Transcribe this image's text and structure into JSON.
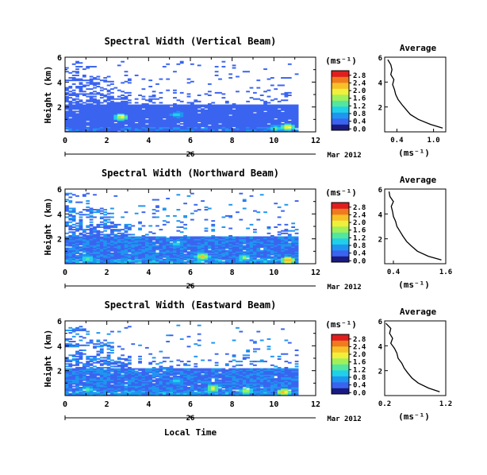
{
  "figure": {
    "time_axis_label": "Local Time",
    "date_day": "26",
    "date_month_year": "Mar 2012",
    "cbar_unit": "(ms⁻¹)",
    "avg_title": "Average",
    "avg_xlabel": "(ms⁻¹)"
  },
  "chart_data": [
    {
      "type": "heatmap",
      "title": "Spectral Width (Vertical Beam)",
      "ylabel": "Height (km)",
      "xlabel": "Local Time",
      "xlim": [
        0,
        12
      ],
      "xticks": [
        "0",
        "2",
        "4",
        "6",
        "8",
        "10",
        "12"
      ],
      "ylim": [
        0,
        6
      ],
      "yticks": [
        "2",
        "4",
        "6"
      ],
      "data_extent_hours": [
        0,
        11.1
      ],
      "max_height_km": 5.7,
      "dense_top_km": 2.2,
      "colorbar": {
        "ticks": [
          "0.0",
          "0.4",
          "0.8",
          "1.2",
          "1.6",
          "2.0",
          "2.4",
          "2.8"
        ],
        "range": [
          0,
          2.8
        ],
        "colors": [
          "#1a1a80",
          "#3a64f0",
          "#1e96f0",
          "#20d0e8",
          "#52e6a0",
          "#a0f05a",
          "#f0f03c",
          "#f8c028",
          "#f07a1e",
          "#e01e1e"
        ]
      },
      "typical_value_ms": 0.3,
      "hotspots": [
        {
          "t": 2.6,
          "h": 1.2,
          "v": 2.0
        },
        {
          "t": 5.3,
          "h": 1.4,
          "v": 1.2
        },
        {
          "t": 10.0,
          "h": 0.3,
          "v": 1.4
        },
        {
          "t": 10.6,
          "h": 0.4,
          "v": 2.2
        }
      ],
      "average_profile": {
        "xlim": [
          0.2,
          1.2
        ],
        "xticks": [
          "0.4",
          "1.0"
        ],
        "ylim": [
          0,
          6
        ],
        "yticks": [
          "2",
          "4",
          "6"
        ],
        "height_km": [
          0.3,
          0.6,
          1.0,
          1.4,
          1.8,
          2.2,
          2.6,
          3.0,
          3.4,
          3.8,
          4.2,
          4.6,
          5.0,
          5.4,
          5.8
        ],
        "width_ms": [
          1.15,
          0.95,
          0.75,
          0.62,
          0.55,
          0.48,
          0.42,
          0.38,
          0.36,
          0.33,
          0.35,
          0.3,
          0.32,
          0.3,
          0.25
        ]
      }
    },
    {
      "type": "heatmap",
      "title": "Spectral Width (Northward Beam)",
      "ylabel": "Height (km)",
      "xlabel": "Local Time",
      "xlim": [
        0,
        12
      ],
      "xticks": [
        "0",
        "2",
        "4",
        "6",
        "8",
        "10",
        "12"
      ],
      "ylim": [
        0,
        6
      ],
      "yticks": [
        "2",
        "4",
        "6"
      ],
      "data_extent_hours": [
        0,
        11.1
      ],
      "max_height_km": 5.7,
      "dense_top_km": 2.2,
      "colorbar": {
        "ticks": [
          "0.0",
          "0.4",
          "0.8",
          "1.2",
          "1.6",
          "2.0",
          "2.4",
          "2.8"
        ],
        "range": [
          0,
          2.8
        ],
        "colors": [
          "#1a1a80",
          "#3a64f0",
          "#1e96f0",
          "#20d0e8",
          "#52e6a0",
          "#a0f05a",
          "#f0f03c",
          "#f8c028",
          "#f07a1e",
          "#e01e1e"
        ]
      },
      "typical_value_ms": 0.5,
      "hotspots": [
        {
          "t": 1.0,
          "h": 0.4,
          "v": 1.5
        },
        {
          "t": 5.3,
          "h": 1.6,
          "v": 1.2
        },
        {
          "t": 6.5,
          "h": 0.6,
          "v": 2.2
        },
        {
          "t": 8.5,
          "h": 0.5,
          "v": 1.6
        },
        {
          "t": 10.6,
          "h": 0.3,
          "v": 2.6
        }
      ],
      "average_profile": {
        "xlim": [
          0.2,
          1.6
        ],
        "xticks": [
          "0.4",
          "1.6"
        ],
        "ylim": [
          0,
          6
        ],
        "yticks": [
          "2",
          "4",
          "6"
        ],
        "height_km": [
          0.3,
          0.6,
          1.0,
          1.4,
          1.8,
          2.2,
          2.6,
          3.0,
          3.4,
          3.8,
          4.2,
          4.6,
          5.0,
          5.4,
          5.8
        ],
        "width_ms": [
          1.5,
          1.2,
          0.95,
          0.82,
          0.7,
          0.62,
          0.55,
          0.48,
          0.45,
          0.4,
          0.38,
          0.35,
          0.4,
          0.32,
          0.3
        ]
      }
    },
    {
      "type": "heatmap",
      "title": "Spectral Width (Eastward Beam)",
      "ylabel": "Height (km)",
      "xlabel": "Local Time",
      "xlim": [
        0,
        12
      ],
      "xticks": [
        "0",
        "2",
        "4",
        "6",
        "8",
        "10",
        "12"
      ],
      "ylim": [
        0,
        6
      ],
      "yticks": [
        "2",
        "4",
        "6"
      ],
      "data_extent_hours": [
        0,
        11.1
      ],
      "max_height_km": 5.7,
      "dense_top_km": 2.2,
      "colorbar": {
        "ticks": [
          "0.0",
          "0.4",
          "0.8",
          "1.2",
          "1.6",
          "2.0",
          "2.4",
          "2.8"
        ],
        "range": [
          0,
          2.8
        ],
        "colors": [
          "#1a1a80",
          "#3a64f0",
          "#1e96f0",
          "#20d0e8",
          "#52e6a0",
          "#a0f05a",
          "#f0f03c",
          "#f8c028",
          "#f07a1e",
          "#e01e1e"
        ]
      },
      "typical_value_ms": 0.5,
      "hotspots": [
        {
          "t": 1.0,
          "h": 0.5,
          "v": 1.4
        },
        {
          "t": 5.3,
          "h": 1.2,
          "v": 1.2
        },
        {
          "t": 7.0,
          "h": 0.6,
          "v": 2.0
        },
        {
          "t": 8.6,
          "h": 0.4,
          "v": 1.8
        },
        {
          "t": 10.4,
          "h": 0.3,
          "v": 2.4
        }
      ],
      "average_profile": {
        "xlim": [
          0.2,
          1.2
        ],
        "xticks": [
          "0.2",
          "1.2"
        ],
        "ylim": [
          0,
          6
        ],
        "yticks": [
          "2",
          "4",
          "6"
        ],
        "height_km": [
          0.3,
          0.6,
          1.0,
          1.4,
          1.8,
          2.2,
          2.6,
          3.0,
          3.4,
          3.8,
          4.2,
          4.6,
          5.0,
          5.4,
          5.8
        ],
        "width_ms": [
          1.1,
          0.92,
          0.75,
          0.65,
          0.58,
          0.52,
          0.48,
          0.42,
          0.4,
          0.36,
          0.3,
          0.33,
          0.28,
          0.3,
          0.22
        ]
      }
    }
  ]
}
